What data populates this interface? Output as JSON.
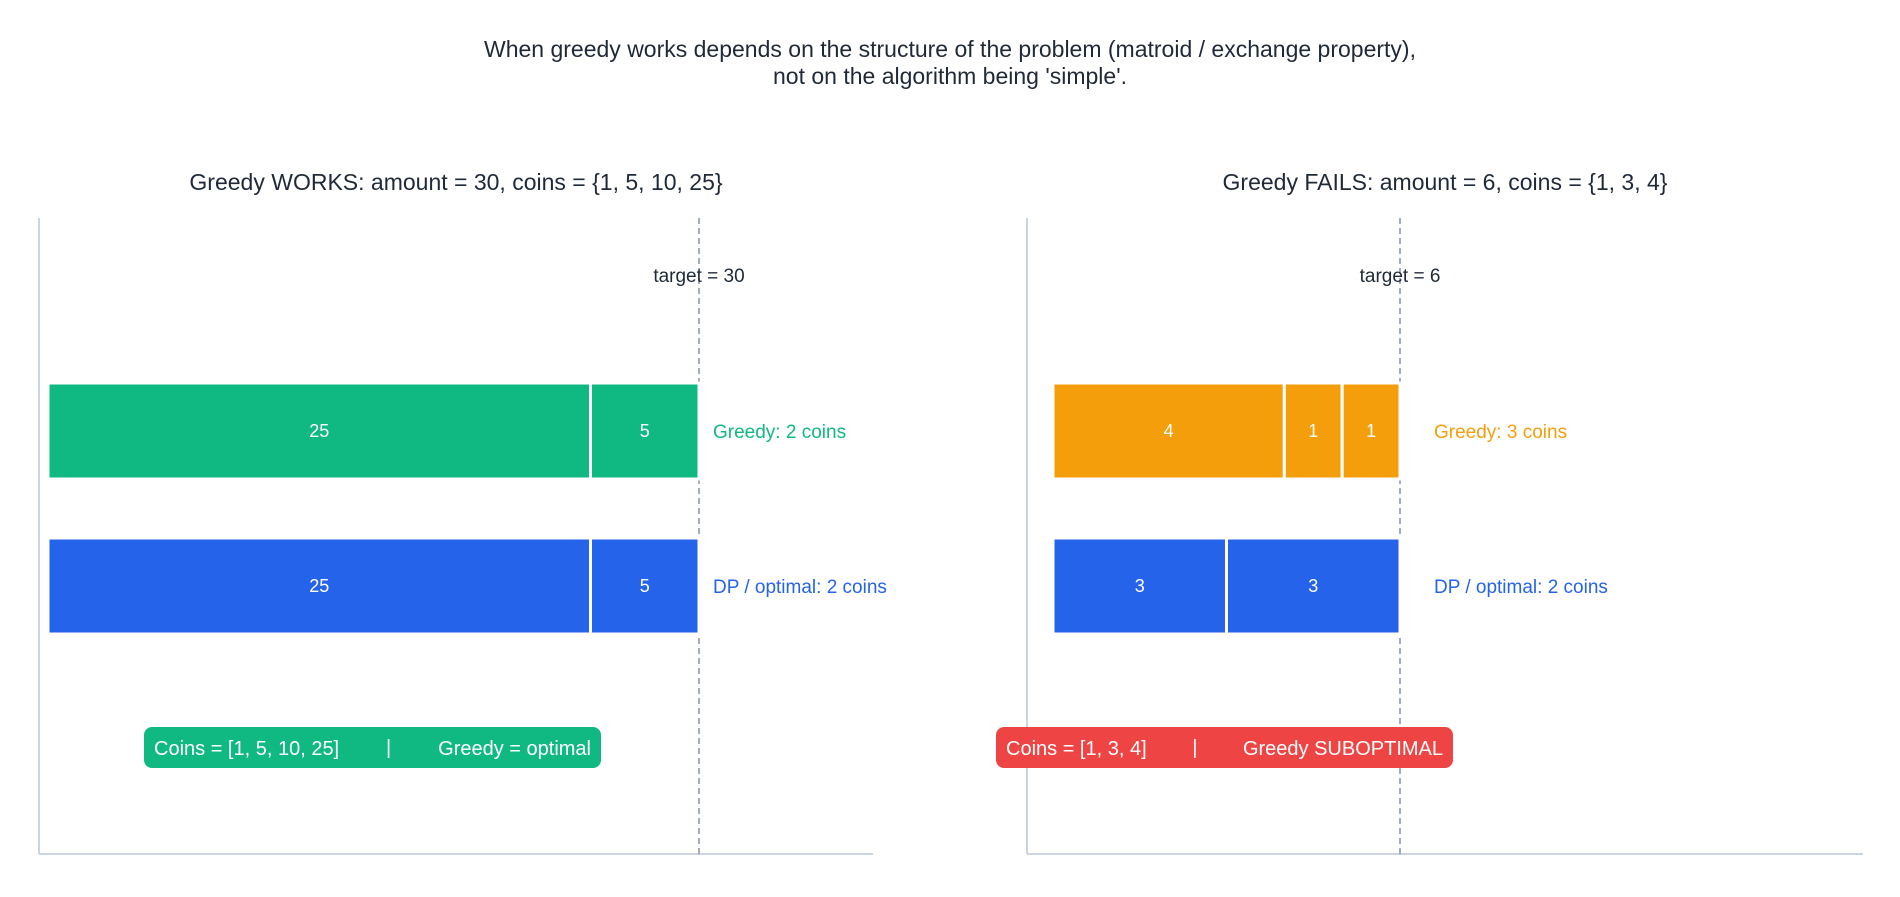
{
  "title_lines": [
    "When greedy works depends on the structure of the problem (matroid / exchange property),",
    "not on the algorithm being 'simple'."
  ],
  "colors": {
    "greedy_ok": "#10b981",
    "greedy_bad": "#f59e0b",
    "dp": "#2563eb",
    "fail_badge": "#ef4444",
    "text": "#1f2937",
    "axis": "#cbd5e1",
    "target_line": "#8a9ab0"
  },
  "chart_data": [
    {
      "type": "bar",
      "orientation": "horizontal-stacked",
      "title": "Greedy WORKS:  amount = 30, coins = {1, 5, 10, 25}",
      "target": 30,
      "target_label": "target = 30",
      "series": [
        {
          "name": "Greedy: 2 coins",
          "segments": [
            25,
            5
          ],
          "color_key": "greedy_ok"
        },
        {
          "name": "DP / optimal: 2 coins",
          "segments": [
            25,
            5
          ],
          "color_key": "dp"
        }
      ],
      "badge": {
        "left": "Coins = [1, 5, 10, 25]",
        "separator": "|",
        "right": "Greedy = optimal",
        "color_key": "greedy_ok"
      },
      "grid": false
    },
    {
      "type": "bar",
      "orientation": "horizontal-stacked",
      "title": "Greedy FAILS:  amount = 6, coins = {1, 3, 4}",
      "target": 6,
      "target_label": "target = 6",
      "series": [
        {
          "name": "Greedy: 3 coins",
          "segments": [
            4,
            1,
            1
          ],
          "color_key": "greedy_bad"
        },
        {
          "name": "DP / optimal: 2 coins",
          "segments": [
            3,
            3
          ],
          "color_key": "dp"
        }
      ],
      "badge": {
        "left": "Coins = [1, 3, 4]",
        "separator": "|",
        "right": "Greedy SUBOPTIMAL",
        "color_key": "fail_badge"
      },
      "grid": false
    }
  ]
}
